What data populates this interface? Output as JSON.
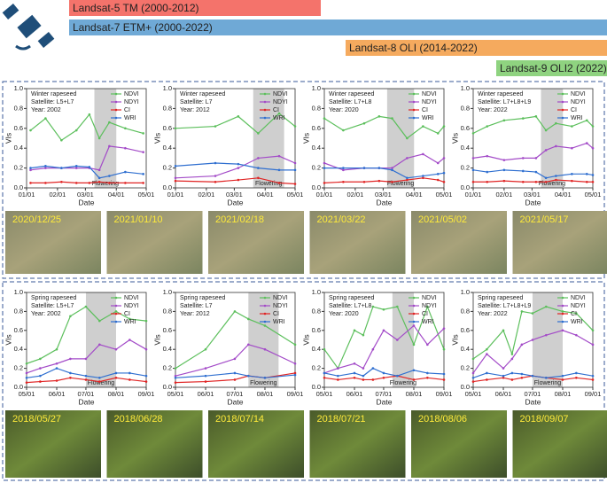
{
  "timeline": [
    {
      "label": "Landsat-5 TM (2000-2012)",
      "color": "#f4736b"
    },
    {
      "label": "Landsat-7 ETM+ (2000-2022)",
      "color": "#6fa9d6"
    },
    {
      "label": "Landsat-8 OLI (2014-2022)",
      "color": "#f5aa5e"
    },
    {
      "label": "Landsat-9 OLI2 (2022)",
      "color": "#8fd380"
    }
  ],
  "thumbnails": {
    "winter": [
      "2020/12/25",
      "2021/01/10",
      "2021/02/18",
      "2021/03/22",
      "2021/05/02",
      "2021/05/17"
    ],
    "spring": [
      "2018/05/27",
      "2018/06/28",
      "2018/07/14",
      "2018/07/21",
      "2018/08/06",
      "2018/09/07"
    ]
  },
  "chart_data": [
    {
      "type": "line",
      "crop": "Winter rapeseed",
      "satellite": "Satellite: L5+L7",
      "year": "Year: 2002",
      "xlabel": "Date",
      "ylabel": "VIs",
      "xlim": [
        "01/01",
        "05/01"
      ],
      "xticks": [
        "01/01",
        "02/01",
        "03/01",
        "04/01",
        "05/01"
      ],
      "ylim": [
        0,
        1
      ],
      "yticks": [
        {
          "value": 0,
          "label": "0.0"
        },
        {
          "value": 0.2,
          "label": "0.2"
        },
        {
          "value": 0.4,
          "label": "0.4"
        },
        {
          "value": 0.6,
          "label": "0.6"
        },
        {
          "value": 0.8,
          "label": "0.8"
        },
        {
          "value": 1,
          "label": "1.0"
        }
      ],
      "span": {
        "from": "03/10",
        "to": "04/01",
        "label": "Flowering"
      },
      "x": [
        "01/05",
        "01/20",
        "02/05",
        "02/20",
        "03/05",
        "03/15",
        "03/25",
        "04/10",
        "04/28"
      ],
      "series": [
        {
          "name": "NDVI",
          "color": "#5cbf5c",
          "values": [
            0.58,
            0.7,
            0.48,
            0.58,
            0.74,
            0.5,
            0.66,
            0.6,
            0.55
          ]
        },
        {
          "name": "NDYI",
          "color": "#a34bc8",
          "values": [
            0.18,
            0.2,
            0.2,
            0.2,
            0.2,
            0.18,
            0.42,
            0.4,
            0.36
          ]
        },
        {
          "name": "CI",
          "color": "#e02424",
          "values": [
            0.05,
            0.05,
            0.06,
            0.05,
            0.05,
            0.06,
            0.05,
            0.05,
            0.05
          ]
        },
        {
          "name": "WRI",
          "color": "#2f6fd0",
          "values": [
            0.2,
            0.22,
            0.2,
            0.22,
            0.21,
            0.1,
            0.12,
            0.16,
            0.14
          ]
        }
      ]
    },
    {
      "type": "line",
      "crop": "Winter rapeseed",
      "satellite": "Satellite: L7",
      "year": "Year: 2012",
      "xlabel": "Date",
      "ylabel": "VIs",
      "xlim": [
        "01/01",
        "05/01"
      ],
      "xticks": [
        "01/01",
        "02/01",
        "03/01",
        "04/01",
        "05/01"
      ],
      "ylim": [
        0,
        1
      ],
      "yticks": [
        {
          "value": 0,
          "label": "0.0"
        },
        {
          "value": 0.2,
          "label": "0.2"
        },
        {
          "value": 0.4,
          "label": "0.4"
        },
        {
          "value": 0.6,
          "label": "0.6"
        },
        {
          "value": 0.8,
          "label": "0.8"
        },
        {
          "value": 1,
          "label": "1.0"
        }
      ],
      "span": {
        "from": "03/20",
        "to": "04/20",
        "label": "Flowering"
      },
      "x": [
        "01/01",
        "02/10",
        "03/05",
        "03/25",
        "04/15",
        "05/01"
      ],
      "series": [
        {
          "name": "NDVI",
          "color": "#5cbf5c",
          "values": [
            0.6,
            0.62,
            0.72,
            0.55,
            0.75,
            0.62
          ]
        },
        {
          "name": "NDYI",
          "color": "#a34bc8",
          "values": [
            0.1,
            0.12,
            0.2,
            0.3,
            0.32,
            0.25
          ]
        },
        {
          "name": "CI",
          "color": "#e02424",
          "values": [
            0.07,
            0.06,
            0.08,
            0.1,
            0.05,
            0.04
          ]
        },
        {
          "name": "WRI",
          "color": "#2f6fd0",
          "values": [
            0.22,
            0.25,
            0.24,
            0.2,
            0.18,
            0.18
          ]
        }
      ]
    },
    {
      "type": "line",
      "crop": "Winter rapeseed",
      "satellite": "Satellite: L7+L8",
      "year": "Year: 2020",
      "xlabel": "Date",
      "ylabel": "VIs",
      "xlim": [
        "01/01",
        "05/01"
      ],
      "xticks": [
        "01/01",
        "02/01",
        "03/01",
        "04/01",
        "05/01"
      ],
      "ylim": [
        0,
        1
      ],
      "yticks": [
        {
          "value": 0,
          "label": "0.0"
        },
        {
          "value": 0.2,
          "label": "0.2"
        },
        {
          "value": 0.4,
          "label": "0.4"
        },
        {
          "value": 0.6,
          "label": "0.6"
        },
        {
          "value": 0.8,
          "label": "0.8"
        },
        {
          "value": 1,
          "label": "1.0"
        }
      ],
      "span": {
        "from": "03/05",
        "to": "04/01",
        "label": "Flowering"
      },
      "x": [
        "01/01",
        "01/20",
        "02/10",
        "02/25",
        "03/10",
        "03/25",
        "04/10",
        "04/25",
        "05/01"
      ],
      "series": [
        {
          "name": "NDVI",
          "color": "#5cbf5c",
          "values": [
            0.7,
            0.58,
            0.65,
            0.72,
            0.7,
            0.5,
            0.62,
            0.55,
            0.62
          ]
        },
        {
          "name": "NDYI",
          "color": "#a34bc8",
          "values": [
            0.25,
            0.18,
            0.2,
            0.2,
            0.2,
            0.3,
            0.34,
            0.25,
            0.3
          ]
        },
        {
          "name": "CI",
          "color": "#e02424",
          "values": [
            0.05,
            0.06,
            0.06,
            0.07,
            0.06,
            0.08,
            0.1,
            0.08,
            0.06
          ]
        },
        {
          "name": "WRI",
          "color": "#2f6fd0",
          "values": [
            0.2,
            0.2,
            0.2,
            0.2,
            0.18,
            0.1,
            0.12,
            0.14,
            0.15
          ]
        }
      ]
    },
    {
      "type": "line",
      "crop": "Winter rapeseed",
      "satellite": "Satellite: L7+L8+L9",
      "year": "Year: 2022",
      "xlabel": "Date",
      "ylabel": "VIs",
      "xlim": [
        "01/01",
        "05/01"
      ],
      "xticks": [
        "01/01",
        "02/01",
        "03/01",
        "04/01",
        "05/01"
      ],
      "ylim": [
        0,
        1
      ],
      "yticks": [
        {
          "value": 0,
          "label": "0.0"
        },
        {
          "value": 0.2,
          "label": "0.2"
        },
        {
          "value": 0.4,
          "label": "0.4"
        },
        {
          "value": 0.6,
          "label": "0.6"
        },
        {
          "value": 0.8,
          "label": "0.8"
        },
        {
          "value": 1,
          "label": "1.0"
        }
      ],
      "span": {
        "from": "03/10",
        "to": "04/01",
        "label": "Flowering"
      },
      "x": [
        "01/01",
        "01/15",
        "02/01",
        "02/20",
        "03/05",
        "03/15",
        "03/25",
        "04/10",
        "04/25",
        "05/01"
      ],
      "series": [
        {
          "name": "NDVI",
          "color": "#5cbf5c",
          "values": [
            0.55,
            0.62,
            0.68,
            0.7,
            0.72,
            0.58,
            0.65,
            0.62,
            0.68,
            0.62
          ]
        },
        {
          "name": "NDYI",
          "color": "#a34bc8",
          "values": [
            0.3,
            0.32,
            0.28,
            0.3,
            0.3,
            0.38,
            0.42,
            0.4,
            0.45,
            0.4
          ]
        },
        {
          "name": "CI",
          "color": "#e02424",
          "values": [
            0.06,
            0.06,
            0.07,
            0.06,
            0.06,
            0.06,
            0.08,
            0.07,
            0.06,
            0.06
          ]
        },
        {
          "name": "WRI",
          "color": "#2f6fd0",
          "values": [
            0.18,
            0.16,
            0.18,
            0.17,
            0.16,
            0.1,
            0.12,
            0.14,
            0.14,
            0.13
          ]
        }
      ]
    },
    {
      "type": "line",
      "crop": "Spring rapeseed",
      "satellite": "Satellite: L5+L7",
      "year": "Year: 2002",
      "xlabel": "Date",
      "ylabel": "VIs",
      "xlim": [
        "05/01",
        "09/01"
      ],
      "xticks": [
        "05/01",
        "06/01",
        "07/01",
        "08/01",
        "09/01"
      ],
      "ylim": [
        0,
        1
      ],
      "yticks": [
        {
          "value": 0,
          "label": "0.0"
        },
        {
          "value": 0.2,
          "label": "0.2"
        },
        {
          "value": 0.4,
          "label": "0.4"
        },
        {
          "value": 0.6,
          "label": "0.6"
        },
        {
          "value": 0.8,
          "label": "0.8"
        },
        {
          "value": 1,
          "label": "1.0"
        }
      ],
      "span": {
        "from": "07/01",
        "to": "08/01",
        "label": "Flowering"
      },
      "x": [
        "05/01",
        "05/15",
        "06/01",
        "06/15",
        "07/01",
        "07/15",
        "08/01",
        "08/15",
        "09/01"
      ],
      "series": [
        {
          "name": "NDVI",
          "color": "#5cbf5c",
          "values": [
            0.25,
            0.3,
            0.4,
            0.75,
            0.85,
            0.7,
            0.8,
            0.72,
            0.7
          ]
        },
        {
          "name": "NDYI",
          "color": "#a34bc8",
          "values": [
            0.15,
            0.2,
            0.25,
            0.3,
            0.3,
            0.45,
            0.4,
            0.5,
            0.4
          ]
        },
        {
          "name": "CI",
          "color": "#e02424",
          "values": [
            0.05,
            0.06,
            0.07,
            0.1,
            0.08,
            0.06,
            0.1,
            0.08,
            0.06
          ]
        },
        {
          "name": "WRI",
          "color": "#2f6fd0",
          "values": [
            0.1,
            0.12,
            0.2,
            0.15,
            0.12,
            0.1,
            0.15,
            0.15,
            0.12
          ]
        }
      ]
    },
    {
      "type": "line",
      "crop": "Spring rapeseed",
      "satellite": "Satellite: L7",
      "year": "Year: 2012",
      "xlabel": "Date",
      "ylabel": "VIs",
      "xlim": [
        "05/01",
        "09/01"
      ],
      "xticks": [
        "05/01",
        "06/01",
        "07/01",
        "08/01",
        "09/01"
      ],
      "ylim": [
        0,
        1
      ],
      "yticks": [
        {
          "value": 0,
          "label": "0.0"
        },
        {
          "value": 0.2,
          "label": "0.2"
        },
        {
          "value": 0.4,
          "label": "0.4"
        },
        {
          "value": 0.6,
          "label": "0.6"
        },
        {
          "value": 0.8,
          "label": "0.8"
        },
        {
          "value": 1,
          "label": "1.0"
        }
      ],
      "span": {
        "from": "07/15",
        "to": "08/15",
        "label": "Flowering"
      },
      "x": [
        "05/01",
        "06/01",
        "07/01",
        "07/15",
        "08/01",
        "09/01"
      ],
      "series": [
        {
          "name": "NDVI",
          "color": "#5cbf5c",
          "values": [
            0.2,
            0.4,
            0.8,
            0.72,
            0.65,
            0.45
          ]
        },
        {
          "name": "NDYI",
          "color": "#a34bc8",
          "values": [
            0.12,
            0.2,
            0.3,
            0.45,
            0.4,
            0.25
          ]
        },
        {
          "name": "CI",
          "color": "#e02424",
          "values": [
            0.05,
            0.06,
            0.08,
            0.12,
            0.1,
            0.15
          ]
        },
        {
          "name": "WRI",
          "color": "#2f6fd0",
          "values": [
            0.1,
            0.12,
            0.15,
            0.12,
            0.1,
            0.13
          ]
        }
      ]
    },
    {
      "type": "line",
      "crop": "Spring rapeseed",
      "satellite": "Satellite: L7+L8",
      "year": "Year: 2020",
      "xlabel": "Date",
      "ylabel": "VIs",
      "xlim": [
        "05/01",
        "09/01"
      ],
      "xticks": [
        "05/01",
        "06/01",
        "07/01",
        "08/01",
        "09/01"
      ],
      "ylim": [
        0,
        1
      ],
      "yticks": [
        {
          "value": 0,
          "label": "0.0"
        },
        {
          "value": 0.2,
          "label": "0.2"
        },
        {
          "value": 0.4,
          "label": "0.4"
        },
        {
          "value": 0.6,
          "label": "0.6"
        },
        {
          "value": 0.8,
          "label": "0.8"
        },
        {
          "value": 1,
          "label": "1.0"
        }
      ],
      "span": {
        "from": "07/10",
        "to": "08/01",
        "label": "Flowering"
      },
      "x": [
        "05/01",
        "05/15",
        "06/01",
        "06/10",
        "06/20",
        "07/01",
        "07/15",
        "08/01",
        "08/15",
        "09/01"
      ],
      "series": [
        {
          "name": "NDVI",
          "color": "#5cbf5c",
          "values": [
            0.4,
            0.2,
            0.6,
            0.55,
            0.85,
            0.82,
            0.85,
            0.45,
            0.85,
            0.4
          ]
        },
        {
          "name": "NDYI",
          "color": "#a34bc8",
          "values": [
            0.15,
            0.2,
            0.25,
            0.2,
            0.4,
            0.6,
            0.5,
            0.65,
            0.45,
            0.62
          ]
        },
        {
          "name": "CI",
          "color": "#e02424",
          "values": [
            0.1,
            0.08,
            0.1,
            0.08,
            0.08,
            0.1,
            0.12,
            0.08,
            0.1,
            0.08
          ]
        },
        {
          "name": "WRI",
          "color": "#2f6fd0",
          "values": [
            0.15,
            0.12,
            0.15,
            0.12,
            0.2,
            0.15,
            0.12,
            0.18,
            0.15,
            0.14
          ]
        }
      ]
    },
    {
      "type": "line",
      "crop": "Spring rapeseed",
      "satellite": "Satellite: L7+L8+L9",
      "year": "Year: 2022",
      "xlabel": "Date",
      "ylabel": "VIs",
      "xlim": [
        "05/01",
        "09/01"
      ],
      "xticks": [
        "05/01",
        "06/01",
        "07/01",
        "08/01",
        "09/01"
      ],
      "ylim": [
        0,
        1
      ],
      "yticks": [
        {
          "value": 0,
          "label": "0.0"
        },
        {
          "value": 0.2,
          "label": "0.2"
        },
        {
          "value": 0.4,
          "label": "0.4"
        },
        {
          "value": 0.6,
          "label": "0.6"
        },
        {
          "value": 0.8,
          "label": "0.8"
        },
        {
          "value": 1,
          "label": "1.0"
        }
      ],
      "span": {
        "from": "07/01",
        "to": "08/01",
        "label": "Flowering"
      },
      "x": [
        "05/01",
        "05/15",
        "06/01",
        "06/10",
        "06/20",
        "07/01",
        "07/15",
        "08/01",
        "08/15",
        "09/01"
      ],
      "series": [
        {
          "name": "NDVI",
          "color": "#5cbf5c",
          "values": [
            0.3,
            0.4,
            0.6,
            0.35,
            0.8,
            0.78,
            0.85,
            0.8,
            0.78,
            0.6
          ]
        },
        {
          "name": "NDYI",
          "color": "#a34bc8",
          "values": [
            0.15,
            0.35,
            0.2,
            0.3,
            0.45,
            0.5,
            0.55,
            0.6,
            0.55,
            0.45
          ]
        },
        {
          "name": "CI",
          "color": "#e02424",
          "values": [
            0.06,
            0.08,
            0.1,
            0.08,
            0.1,
            0.12,
            0.1,
            0.08,
            0.1,
            0.08
          ]
        },
        {
          "name": "WRI",
          "color": "#2f6fd0",
          "values": [
            0.1,
            0.15,
            0.12,
            0.15,
            0.14,
            0.12,
            0.1,
            0.12,
            0.15,
            0.12
          ]
        }
      ]
    }
  ]
}
